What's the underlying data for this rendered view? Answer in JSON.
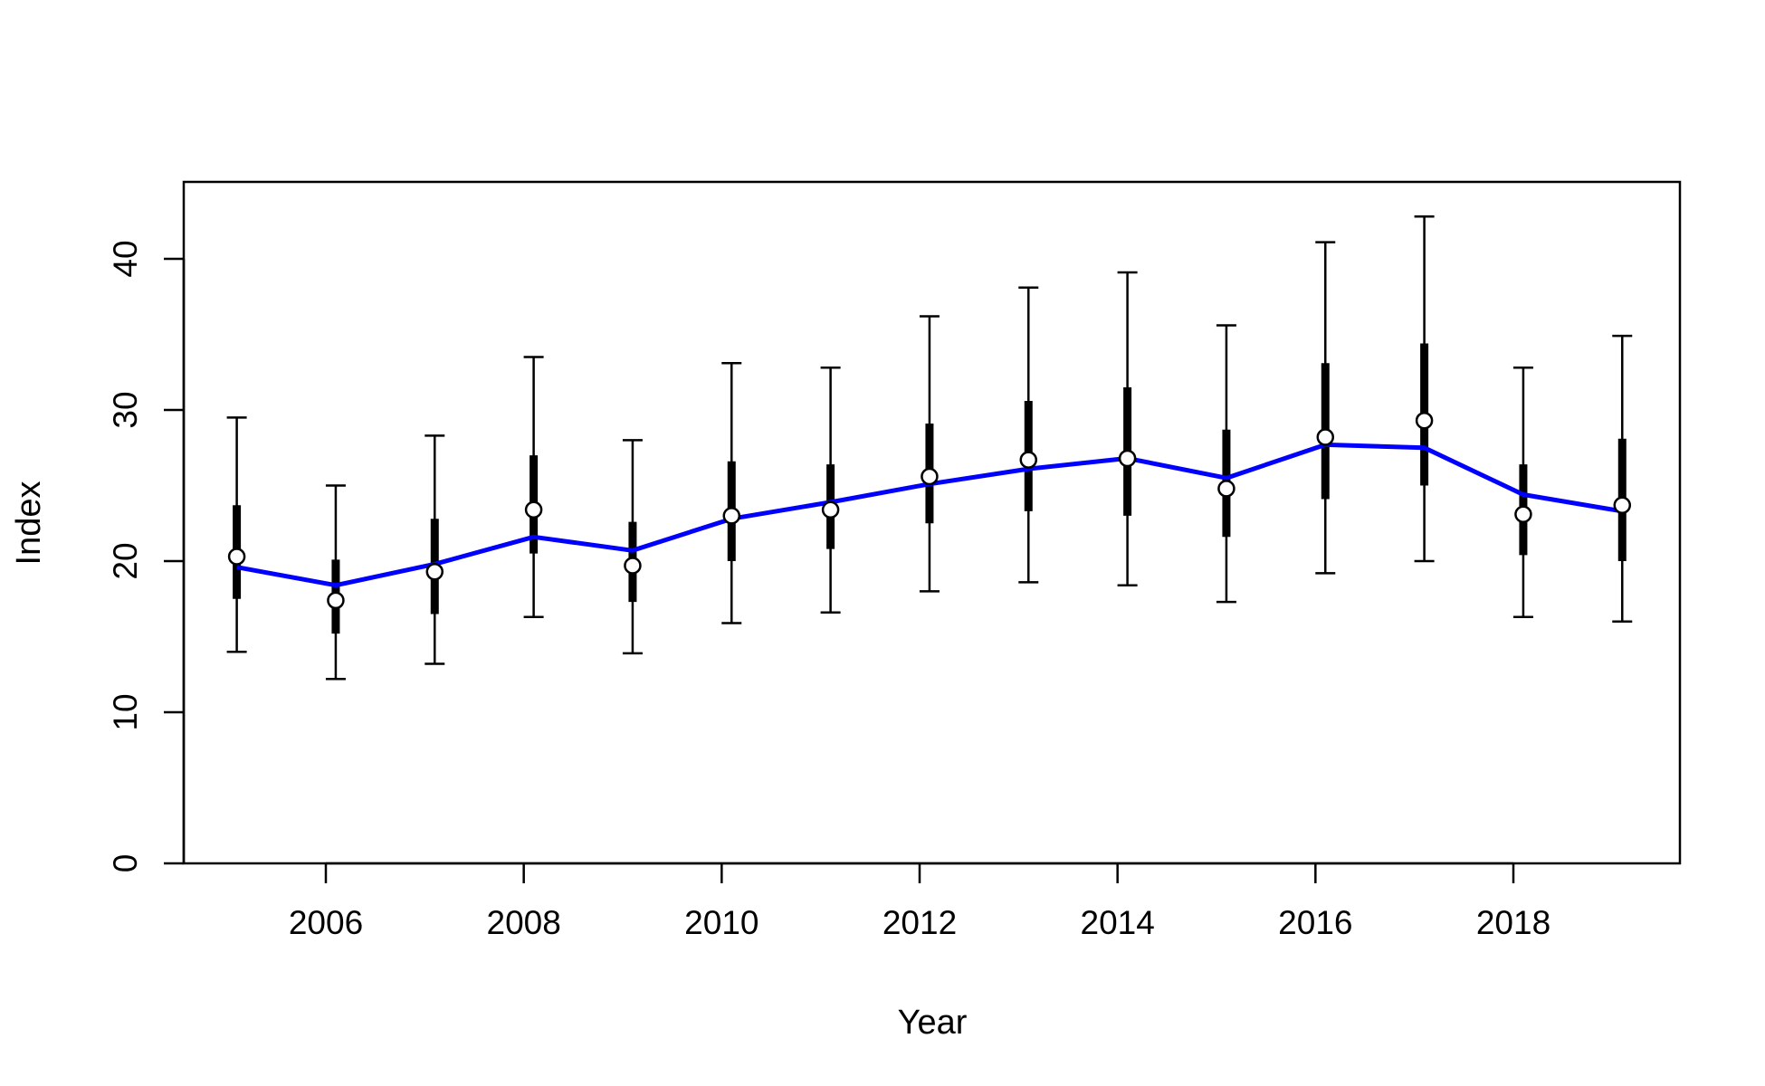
{
  "chart_data": {
    "type": "line",
    "title": "",
    "xlabel": "Year",
    "ylabel": "Index",
    "xlim": [
      2004.5,
      2019.6
    ],
    "ylim": [
      0,
      45
    ],
    "xticks": [
      2006,
      2008,
      2010,
      2012,
      2014,
      2016,
      2018
    ],
    "yticks": [
      0,
      10,
      20,
      30,
      40
    ],
    "grid": false,
    "legend": "none",
    "colors": {
      "fit_line": "#0000ff",
      "error_bars": "#000000",
      "points_fill": "#ffffff",
      "points_stroke": "#000000"
    },
    "x": [
      2005.1,
      2006.1,
      2007.1,
      2008.1,
      2009.1,
      2010.1,
      2011.1,
      2012.1,
      2013.1,
      2014.1,
      2015.1,
      2016.1,
      2017.1,
      2018.1,
      2019.1
    ],
    "series": [
      {
        "type": "point",
        "values": [
          20.3,
          17.4,
          19.3,
          23.4,
          19.7,
          23.0,
          23.4,
          25.6,
          26.7,
          26.8,
          24.8,
          28.2,
          29.3,
          23.1,
          23.7
        ],
        "inner_low": [
          17.5,
          15.2,
          16.5,
          20.5,
          17.3,
          20.0,
          20.8,
          22.5,
          23.3,
          23.0,
          21.6,
          24.1,
          25.0,
          20.4,
          20.0
        ],
        "inner_high": [
          23.7,
          20.1,
          22.8,
          27.0,
          22.6,
          26.6,
          26.4,
          29.1,
          30.6,
          31.5,
          28.7,
          33.1,
          34.4,
          26.4,
          28.1
        ],
        "outer_low": [
          14.0,
          12.2,
          13.2,
          16.3,
          13.9,
          15.9,
          16.6,
          18.0,
          18.6,
          18.4,
          17.3,
          19.2,
          20.0,
          16.3,
          16.0
        ],
        "outer_high": [
          29.5,
          25.0,
          28.3,
          33.5,
          28.0,
          33.1,
          32.8,
          36.2,
          38.1,
          39.1,
          35.6,
          41.1,
          42.8,
          32.8,
          34.9
        ]
      },
      {
        "type": "line",
        "values": [
          19.6,
          18.4,
          19.8,
          21.6,
          20.7,
          22.8,
          23.9,
          25.1,
          26.1,
          26.8,
          25.5,
          27.7,
          27.5,
          24.4,
          23.3
        ]
      }
    ]
  }
}
